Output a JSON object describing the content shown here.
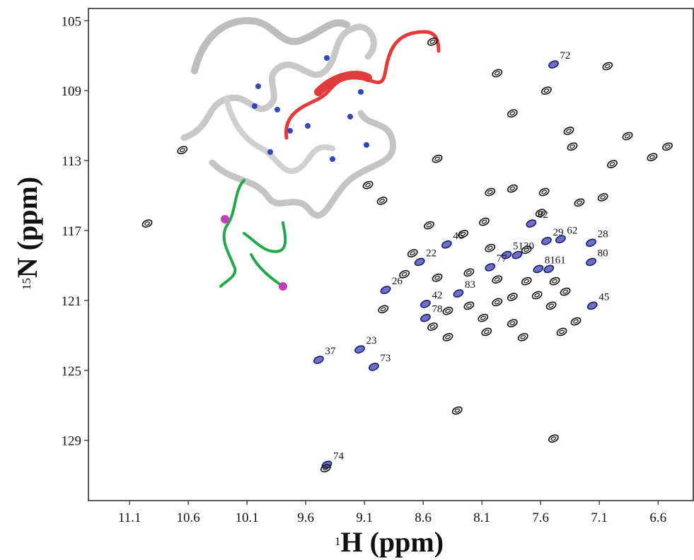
{
  "chart_data": {
    "type": "scatter",
    "xlabel_superscript": "1",
    "xlabel": "H (ppm)",
    "ylabel_superscript": "15",
    "ylabel": "N (ppm)",
    "xlim": [
      11.45,
      6.3
    ],
    "ylim": [
      104.3,
      132.45
    ],
    "xticks": [
      11.1,
      10.6,
      10.1,
      9.6,
      9.1,
      8.6,
      8.1,
      7.6,
      7.1,
      6.6
    ],
    "yticks": [
      105,
      109,
      113,
      117,
      121,
      125,
      129
    ],
    "series": [
      {
        "color": "#3b40b5",
        "labels": [
          "72",
          "82",
          "29",
          "62",
          "28",
          "51",
          "30",
          "77",
          "81",
          "61",
          "80",
          "46",
          "22",
          "26",
          "83",
          "42",
          "78",
          "45",
          "37",
          "23",
          "73",
          "74"
        ],
        "x": [
          7.49,
          7.68,
          7.55,
          7.43,
          7.17,
          7.89,
          7.8,
          8.03,
          7.62,
          7.53,
          7.17,
          8.4,
          8.63,
          8.92,
          8.3,
          8.58,
          8.58,
          7.16,
          9.49,
          9.14,
          9.02,
          9.42
        ],
        "values": [
          107.5,
          116.6,
          117.6,
          117.5,
          117.7,
          118.4,
          118.4,
          119.1,
          119.2,
          119.2,
          118.8,
          117.8,
          118.8,
          120.4,
          120.6,
          121.2,
          122.0,
          121.3,
          124.4,
          123.8,
          124.8,
          130.4
        ]
      },
      {
        "color": "#111111",
        "x": [
          8.52,
          7.97,
          7.55,
          7.84,
          7.03,
          10.65,
          10.95,
          7.36,
          6.86,
          6.52,
          6.65,
          7.33,
          6.99,
          8.48,
          9.07,
          8.95,
          8.03,
          7.84,
          7.57,
          7.07,
          7.27,
          8.08,
          8.55,
          7.6,
          8.26,
          8.03,
          8.69,
          7.72,
          8.76,
          8.48,
          8.21,
          7.97,
          7.72,
          7.48,
          7.63,
          7.84,
          7.39,
          8.21,
          7.97,
          7.51,
          8.94,
          8.39,
          8.09,
          7.84,
          8.52,
          7.3,
          8.39,
          8.06,
          7.75,
          7.42,
          8.31,
          7.49,
          9.43
        ],
        "values": [
          106.2,
          108.0,
          109.0,
          110.3,
          107.6,
          112.4,
          116.6,
          111.3,
          111.6,
          112.2,
          112.8,
          112.2,
          113.2,
          112.9,
          114.4,
          115.3,
          114.8,
          114.6,
          114.8,
          115.1,
          115.4,
          116.5,
          116.7,
          116.0,
          117.2,
          118.0,
          118.3,
          118.1,
          119.5,
          119.7,
          119.4,
          119.8,
          119.9,
          119.9,
          120.7,
          120.8,
          120.5,
          121.3,
          121.1,
          121.3,
          121.5,
          121.6,
          122.0,
          122.3,
          122.5,
          122.2,
          123.1,
          122.8,
          123.1,
          122.8,
          127.3,
          128.9,
          130.6
        ]
      }
    ]
  }
}
